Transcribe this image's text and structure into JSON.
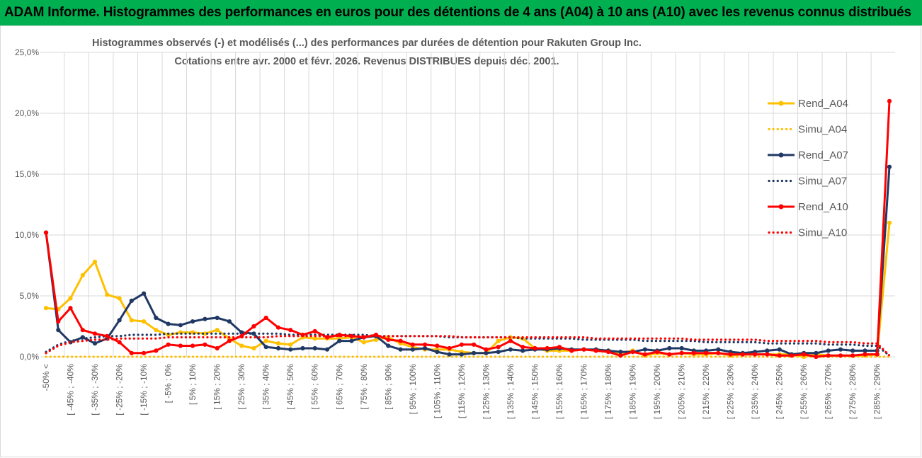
{
  "banner": {
    "title": "ADAM Informe. Histogrammes des performances en euros pour des détentions de 4 ans (A04) à 10 ans (A10) avec les revenus connus distribués"
  },
  "colors": {
    "banner_bg": "#00b050",
    "A04": "#ffc000",
    "A07": "#203864",
    "A10": "#ff0000",
    "grid": "#d9d9d9",
    "text": "#595959"
  },
  "chart_data": {
    "type": "line",
    "title_line1": "Histogrammes observés (-) et modélisés (...)  des performances par durées de détention pour Rakuten Group Inc.",
    "title_line2": "Cotations entre avr. 2000 et févr. 2026. Revenus DISTRIBUES depuis déc. 2001.",
    "y_ticks": [
      "0,0%",
      "5,0%",
      "10,0%",
      "15,0%",
      "20,0%",
      "25,0%"
    ],
    "ylim": [
      0,
      25
    ],
    "x_labels": [
      "-50% <",
      "[ -45% ; -40%",
      "[ -35% ; -30%",
      "[ -25% ; -20%",
      "[ -15% ; -10%",
      "[ -5% ; 0%",
      "[ 5% ; 10%",
      "[ 15% ; 20%",
      "[ 25% ; 30%",
      "[ 35% ; 40%",
      "[ 45% ; 50%",
      "[ 55% ; 60%",
      "[ 65% ; 70%",
      "[ 75% ; 80%",
      "[ 85% ; 90%",
      "[ 95% ; 100%",
      "[ 105% ; 110%",
      "[ 115% ; 120%",
      "[ 125% ; 130%",
      "[ 135% ; 140%",
      "[ 145% ; 150%",
      "[ 155% ; 160%",
      "[ 165% ; 170%",
      "[ 175% ; 180%",
      "[ 185% ; 190%",
      "[ 195% ; 200%",
      "[ 205% ; 210%",
      "[ 215% ; 220%",
      "[ 225% ; 230%",
      "[ 235% ; 240%",
      "[ 245% ; 250%",
      "[ 255% ; 260%",
      "[ 265% ; 270%",
      "[ 275% ; 280%",
      "[ 285% ; 290%"
    ],
    "n_points": 70,
    "series": [
      {
        "name": "Rend_A04",
        "style": "solid",
        "color": "#ffc000",
        "values": [
          4.0,
          3.9,
          4.8,
          6.7,
          7.8,
          5.1,
          4.8,
          3.0,
          2.9,
          2.2,
          1.8,
          2.0,
          2.0,
          1.9,
          2.2,
          1.5,
          0.9,
          0.7,
          1.3,
          1.1,
          1.0,
          1.6,
          1.5,
          1.5,
          1.5,
          1.6,
          1.2,
          1.4,
          1.6,
          1.1,
          0.8,
          0.6,
          0.6,
          0.6,
          0.4,
          0.3,
          0.3,
          1.3,
          1.6,
          1.5,
          0.7,
          0.5,
          0.5,
          0.5,
          0.6,
          0.5,
          0.5,
          0.3,
          0.5,
          0.1,
          0.3,
          0.2,
          0.3,
          0.2,
          0.2,
          0.3,
          0.1,
          0.2,
          0.2,
          0.2,
          0.2,
          0.2,
          0.0,
          0.2,
          0.1,
          0.1,
          0.1,
          0.1,
          0.2,
          11.0
        ]
      },
      {
        "name": "Simu_A04",
        "style": "dotted",
        "color": "#ffc000",
        "values": [
          0.0,
          0.0,
          0.0,
          0.0,
          0.0,
          0.0,
          0.0,
          0.0,
          0.0,
          0.0,
          0.0,
          0.0,
          0.0,
          0.0,
          0.0,
          0.0,
          0.0,
          0.0,
          0.0,
          0.0,
          0.0,
          0.0,
          0.0,
          0.0,
          0.0,
          0.0,
          0.0,
          0.0,
          0.0,
          0.0,
          0.0,
          0.0,
          0.0,
          0.0,
          0.0,
          0.0,
          0.0,
          0.0,
          0.0,
          0.0,
          0.0,
          0.0,
          0.0,
          0.0,
          0.0,
          0.0,
          0.0,
          0.0,
          0.0,
          0.0,
          0.0,
          0.0,
          0.0,
          0.0,
          0.0,
          0.0,
          0.0,
          0.0,
          0.0,
          0.0,
          0.0,
          0.0,
          0.0,
          0.0,
          0.0,
          0.0,
          0.0,
          0.0,
          0.0,
          0.0
        ]
      },
      {
        "name": "Rend_A07",
        "style": "solid",
        "color": "#203864",
        "values": [
          10.2,
          2.2,
          1.2,
          1.6,
          1.1,
          1.5,
          3.0,
          4.6,
          5.2,
          3.2,
          2.7,
          2.6,
          2.9,
          3.1,
          3.2,
          2.9,
          2.0,
          1.9,
          0.8,
          0.7,
          0.6,
          0.7,
          0.7,
          0.6,
          1.3,
          1.3,
          1.6,
          1.7,
          0.9,
          0.6,
          0.6,
          0.7,
          0.4,
          0.2,
          0.2,
          0.3,
          0.3,
          0.4,
          0.6,
          0.5,
          0.6,
          0.6,
          0.7,
          0.6,
          0.6,
          0.6,
          0.5,
          0.4,
          0.4,
          0.6,
          0.5,
          0.7,
          0.7,
          0.5,
          0.5,
          0.6,
          0.4,
          0.3,
          0.4,
          0.5,
          0.6,
          0.2,
          0.3,
          0.3,
          0.5,
          0.6,
          0.5,
          0.5,
          0.5,
          15.6
        ]
      },
      {
        "name": "Simu_A07",
        "style": "dotted",
        "color": "#203864",
        "values": [
          0.4,
          1.0,
          1.3,
          1.5,
          1.6,
          1.7,
          1.7,
          1.8,
          1.8,
          1.8,
          1.9,
          1.9,
          1.9,
          1.9,
          1.9,
          1.9,
          1.9,
          1.9,
          1.9,
          1.9,
          1.8,
          1.8,
          1.8,
          1.8,
          1.8,
          1.8,
          1.8,
          1.7,
          1.7,
          1.7,
          1.7,
          1.7,
          1.7,
          1.6,
          1.6,
          1.6,
          1.6,
          1.6,
          1.6,
          1.5,
          1.5,
          1.5,
          1.5,
          1.5,
          1.4,
          1.4,
          1.4,
          1.4,
          1.4,
          1.3,
          1.3,
          1.3,
          1.3,
          1.3,
          1.2,
          1.2,
          1.2,
          1.2,
          1.2,
          1.1,
          1.1,
          1.1,
          1.1,
          1.1,
          1.0,
          1.0,
          1.0,
          0.9,
          0.9,
          0.1
        ]
      },
      {
        "name": "Rend_A10",
        "style": "solid",
        "color": "#ff0000",
        "values": [
          10.2,
          2.9,
          4.0,
          2.2,
          1.9,
          1.7,
          1.2,
          0.3,
          0.3,
          0.5,
          1.0,
          0.9,
          0.9,
          1.0,
          0.7,
          1.3,
          1.7,
          2.5,
          3.2,
          2.4,
          2.2,
          1.8,
          2.1,
          1.6,
          1.8,
          1.7,
          1.6,
          1.8,
          1.4,
          1.3,
          1.0,
          1.0,
          0.9,
          0.7,
          1.0,
          1.0,
          0.6,
          0.8,
          1.3,
          0.8,
          0.7,
          0.7,
          0.8,
          0.5,
          0.6,
          0.5,
          0.4,
          0.1,
          0.4,
          0.2,
          0.4,
          0.2,
          0.3,
          0.3,
          0.3,
          0.3,
          0.2,
          0.2,
          0.2,
          0.2,
          0.1,
          0.1,
          0.2,
          0.0,
          0.1,
          0.1,
          0.1,
          0.2,
          0.2,
          21.0
        ]
      },
      {
        "name": "Simu_A10",
        "style": "dotted",
        "color": "#ff0000",
        "values": [
          0.3,
          0.9,
          1.2,
          1.3,
          1.4,
          1.4,
          1.5,
          1.5,
          1.5,
          1.5,
          1.6,
          1.6,
          1.6,
          1.6,
          1.6,
          1.6,
          1.6,
          1.6,
          1.6,
          1.7,
          1.7,
          1.7,
          1.7,
          1.7,
          1.7,
          1.7,
          1.7,
          1.7,
          1.7,
          1.7,
          1.7,
          1.7,
          1.7,
          1.7,
          1.6,
          1.6,
          1.6,
          1.6,
          1.6,
          1.6,
          1.6,
          1.6,
          1.6,
          1.6,
          1.6,
          1.5,
          1.5,
          1.5,
          1.5,
          1.5,
          1.5,
          1.5,
          1.5,
          1.4,
          1.4,
          1.4,
          1.4,
          1.4,
          1.4,
          1.3,
          1.3,
          1.3,
          1.3,
          1.3,
          1.2,
          1.2,
          1.2,
          1.1,
          1.1,
          0.1
        ]
      }
    ],
    "legend_position": "right",
    "grid": true
  }
}
